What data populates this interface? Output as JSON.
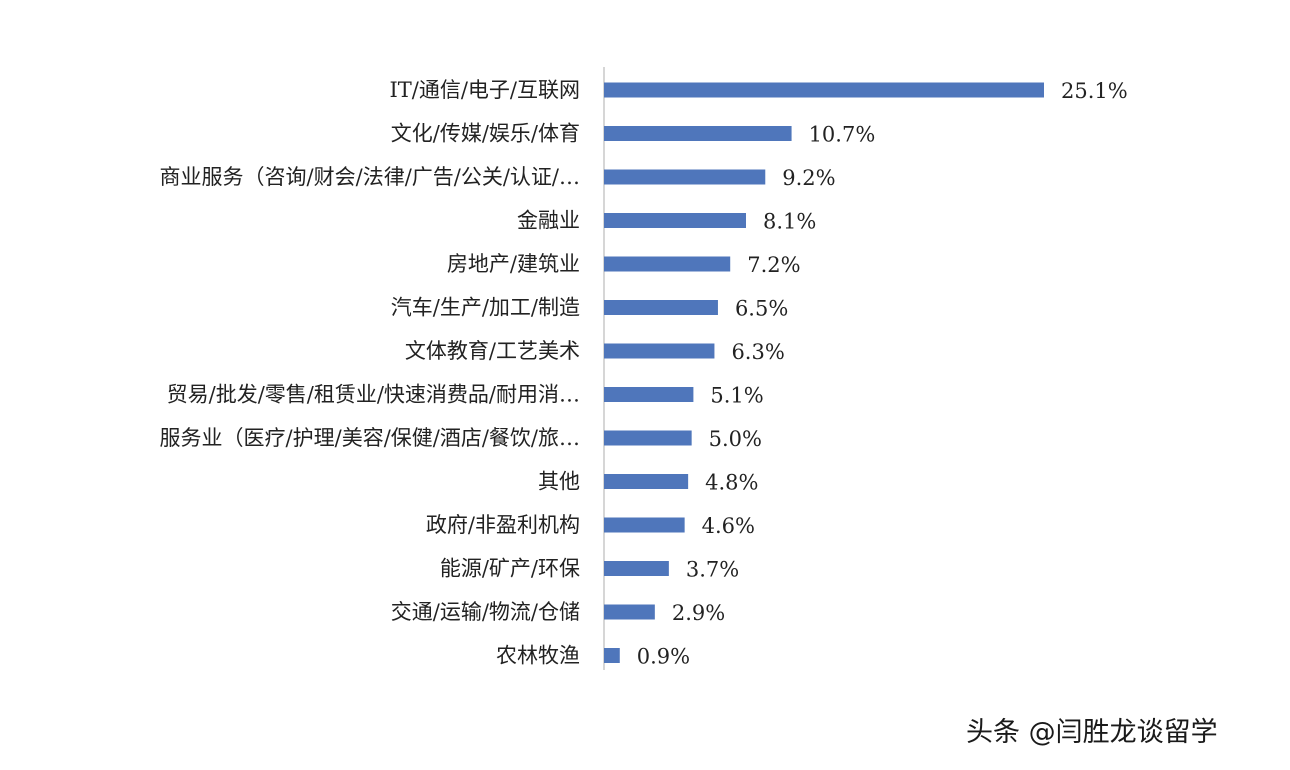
{
  "chart_data": {
    "type": "bar",
    "orientation": "horizontal",
    "categories": [
      "IT/通信/电子/互联网",
      "文化/传媒/娱乐/体育",
      "商业服务（咨询/财会/法律/广告/公关/认证/…",
      "金融业",
      "房地产/建筑业",
      "汽车/生产/加工/制造",
      "文体教育/工艺美术",
      "贸易/批发/零售/租赁业/快速消费品/耐用消…",
      "服务业（医疗/护理/美容/保健/酒店/餐饮/旅…",
      "其他",
      "政府/非盈利机构",
      "能源/矿产/环保",
      "交通/运输/物流/仓储",
      "农林牧渔"
    ],
    "values": [
      25.1,
      10.7,
      9.2,
      8.1,
      7.2,
      6.5,
      6.3,
      5.1,
      5.0,
      4.8,
      4.6,
      3.7,
      2.9,
      0.9
    ],
    "value_labels": [
      "25.1%",
      "10.7%",
      "9.2%",
      "8.1%",
      "7.2%",
      "6.5%",
      "6.3%",
      "5.1%",
      "5.0%",
      "4.8%",
      "4.6%",
      "3.7%",
      "2.9%",
      "0.9%"
    ],
    "unit": "%",
    "xlim": [
      0,
      25.1
    ],
    "bar_color": "#4f76bb",
    "axis_color": "#c8c8c8",
    "grid": false,
    "legend": false
  },
  "watermark": {
    "text": "头条 @闫胜龙谈留学"
  }
}
